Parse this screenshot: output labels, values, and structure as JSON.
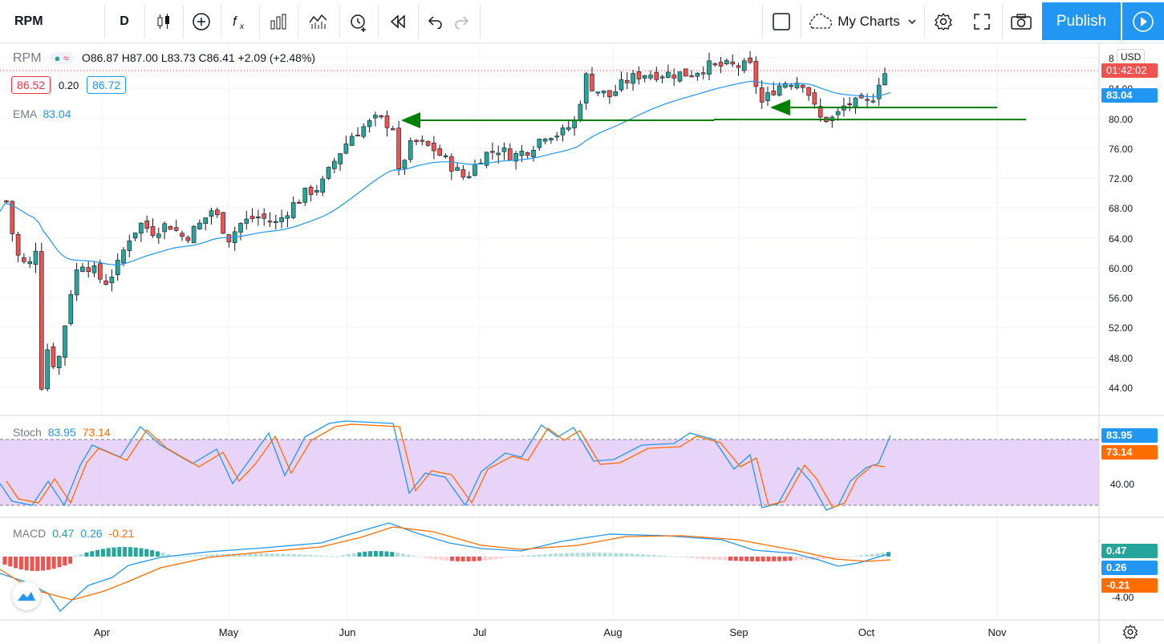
{
  "toolbar": {
    "symbol": "RPM",
    "interval": "D",
    "my_charts": "My Charts",
    "publish": "Publish"
  },
  "legend": {
    "symbol": "RPM",
    "ohlc": "O86.87  H87.00  L83.73  C86.41  +2.09 (+2.48%)",
    "bid": "86.52",
    "spread": "0.20",
    "ask": "86.72",
    "ema_label": "EMA",
    "ema_value": "83.04"
  },
  "price_axis": {
    "currency": "USD",
    "ticks": [
      "8",
      "84.00",
      "80.00",
      "76.00",
      "72.00",
      "68.00",
      "64.00",
      "60.00",
      "56.00",
      "52.00",
      "48.00",
      "44.00"
    ],
    "countdown": "01:42:02",
    "ema_tag": "83.04"
  },
  "stoch": {
    "label": "Stoch",
    "k": "83.95",
    "d": "73.14",
    "axis_tick": "40.00",
    "tag_k": "83.95",
    "tag_d": "73.14"
  },
  "macd": {
    "label": "MACD",
    "hist": "0.47",
    "macd": "0.26",
    "signal": "-0.21",
    "axis_tick": "-4.00",
    "tag_hist": "0.47",
    "tag_macd": "0.26",
    "tag_signal": "-0.21"
  },
  "time_axis": [
    "Apr",
    "May",
    "Jun",
    "Jul",
    "Aug",
    "Sep",
    "Oct",
    "Nov"
  ],
  "colors": {
    "up": "#26a69a",
    "down": "#ef5350",
    "ema": "#2196f3",
    "arrow": "#008000",
    "stoch_fill": "#e1c5f7",
    "accent": "#2196f3"
  }
}
